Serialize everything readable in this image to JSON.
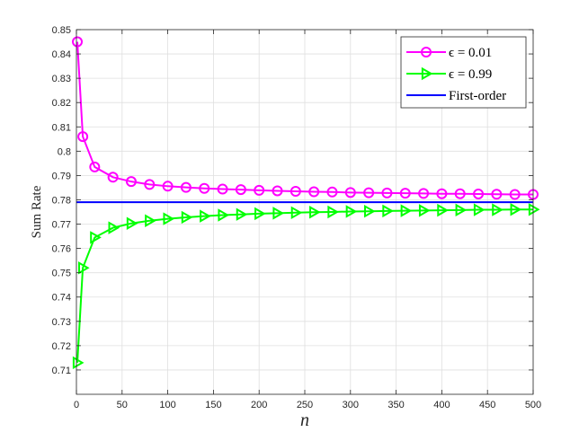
{
  "chart_data": {
    "type": "line",
    "title": "",
    "xlabel": "n",
    "ylabel": "Sum Rate",
    "xlim": [
      0,
      500
    ],
    "ylim": [
      0.7,
      0.85
    ],
    "xticks": [
      "0",
      "50",
      "100",
      "150",
      "200",
      "250",
      "300",
      "350",
      "400",
      "450",
      "500"
    ],
    "yticks": [
      "0.71",
      "0.72",
      "0.73",
      "0.74",
      "0.75",
      "0.76",
      "0.77",
      "0.78",
      "0.79",
      "0.8",
      "0.81",
      "0.82",
      "0.83",
      "0.84",
      "0.85"
    ],
    "grid": true,
    "legend_position": "top-right",
    "series": [
      {
        "name": "ϵ = 0.01",
        "color": "#ff00ff",
        "marker": "circle",
        "x": [
          1,
          7,
          20,
          40,
          60,
          80,
          100,
          120,
          140,
          160,
          180,
          200,
          220,
          240,
          260,
          280,
          300,
          320,
          340,
          360,
          380,
          400,
          420,
          440,
          460,
          480,
          500
        ],
        "y": [
          0.845,
          0.806,
          0.7935,
          0.7893,
          0.7875,
          0.7863,
          0.7856,
          0.7851,
          0.7847,
          0.7844,
          0.7842,
          0.7839,
          0.7837,
          0.7835,
          0.7833,
          0.7832,
          0.783,
          0.7829,
          0.7828,
          0.7827,
          0.7826,
          0.7825,
          0.7825,
          0.7824,
          0.7823,
          0.7822,
          0.7822
        ]
      },
      {
        "name": "ϵ = 0.99",
        "color": "#00ff00",
        "marker": "triangle-right",
        "x": [
          1,
          7,
          20,
          40,
          60,
          80,
          100,
          120,
          140,
          160,
          180,
          200,
          220,
          240,
          260,
          280,
          300,
          320,
          340,
          360,
          380,
          400,
          420,
          440,
          460,
          480,
          500
        ],
        "y": [
          0.713,
          0.752,
          0.7645,
          0.7685,
          0.7703,
          0.7714,
          0.7722,
          0.7728,
          0.7733,
          0.7737,
          0.774,
          0.7743,
          0.7745,
          0.7747,
          0.7749,
          0.775,
          0.7752,
          0.7753,
          0.7754,
          0.7755,
          0.7756,
          0.7757,
          0.7758,
          0.7759,
          0.7759,
          0.776,
          0.776
        ]
      },
      {
        "name": "First-order",
        "color": "#0000ff",
        "marker": "none",
        "x": [
          0,
          500
        ],
        "y": [
          0.779,
          0.779
        ]
      }
    ]
  },
  "colors": {
    "grid": "#dfdfdf",
    "axis": "#262626",
    "background": "#ffffff"
  }
}
